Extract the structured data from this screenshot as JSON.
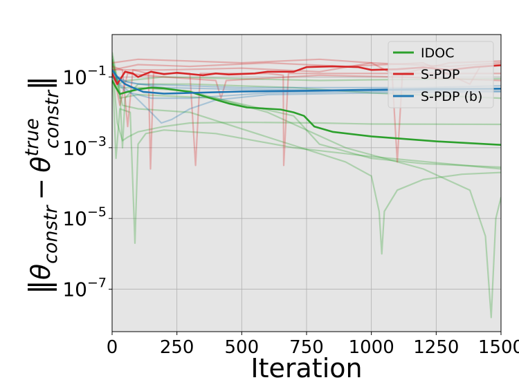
{
  "chart_data": {
    "type": "line",
    "xlabel": "Iteration",
    "ylabel_parts": {
      "theta": "θ",
      "sub": "constr",
      "sup": "true",
      "minus": "−"
    },
    "xlim": [
      0,
      1500
    ],
    "ylim_log10": [
      -8.2,
      0.2
    ],
    "y_scale": "log",
    "grid": true,
    "background": "#e5e5e5",
    "legend_position": "top-right",
    "x_ticks": [
      {
        "value": 0,
        "label": "0"
      },
      {
        "value": 250,
        "label": "250"
      },
      {
        "value": 500,
        "label": "500"
      },
      {
        "value": 750,
        "label": "750"
      },
      {
        "value": 1000,
        "label": "1000"
      },
      {
        "value": 1250,
        "label": "1250"
      },
      {
        "value": 1500,
        "label": "1500"
      }
    ],
    "y_ticks": [
      {
        "log10": -1,
        "base": "10",
        "exp": "−1"
      },
      {
        "log10": -3,
        "base": "10",
        "exp": "−3"
      },
      {
        "log10": -5,
        "base": "10",
        "exp": "−5"
      },
      {
        "log10": -7,
        "base": "10",
        "exp": "−7"
      }
    ],
    "series": [
      {
        "name": "IDOC",
        "color": "#2ca02c",
        "mean_log10": [
          [
            0,
            -1.1
          ],
          [
            15,
            -1.3
          ],
          [
            30,
            -1.48
          ],
          [
            60,
            -1.42
          ],
          [
            100,
            -1.35
          ],
          [
            150,
            -1.3
          ],
          [
            200,
            -1.32
          ],
          [
            300,
            -1.42
          ],
          [
            380,
            -1.6
          ],
          [
            450,
            -1.75
          ],
          [
            520,
            -1.86
          ],
          [
            650,
            -1.92
          ],
          [
            700,
            -2.0
          ],
          [
            740,
            -2.1
          ],
          [
            780,
            -2.4
          ],
          [
            850,
            -2.55
          ],
          [
            1000,
            -2.68
          ],
          [
            1250,
            -2.82
          ],
          [
            1500,
            -2.92
          ]
        ],
        "runs_log10": [
          [
            [
              0,
              -0.3
            ],
            [
              30,
              -1.4
            ],
            [
              40,
              -3.0
            ],
            [
              50,
              -1.6
            ],
            [
              100,
              -1.2
            ],
            [
              300,
              -1.2
            ],
            [
              700,
              -1.3
            ],
            [
              1000,
              -1.45
            ],
            [
              1500,
              -1.6
            ]
          ],
          [
            [
              0,
              -0.5
            ],
            [
              20,
              -2.3
            ],
            [
              40,
              -2.8
            ],
            [
              60,
              -2.7
            ],
            [
              100,
              -2.55
            ],
            [
              200,
              -2.4
            ],
            [
              300,
              -2.3
            ],
            [
              500,
              -2.28
            ],
            [
              800,
              -2.3
            ],
            [
              1000,
              -2.33
            ],
            [
              1500,
              -2.34
            ]
          ],
          [
            [
              0,
              -0.4
            ],
            [
              30,
              -1.6
            ],
            [
              100,
              -1.5
            ],
            [
              400,
              -1.6
            ],
            [
              700,
              -2.1
            ],
            [
              800,
              -2.9
            ],
            [
              1000,
              -3.3
            ],
            [
              1200,
              -3.45
            ],
            [
              1500,
              -3.55
            ]
          ],
          [
            [
              0,
              -0.6
            ],
            [
              15,
              -3.3
            ],
            [
              30,
              -1.9
            ],
            [
              70,
              -2.0
            ],
            [
              88,
              -5.7
            ],
            [
              100,
              -2.9
            ],
            [
              130,
              -2.6
            ],
            [
              200,
              -2.5
            ],
            [
              400,
              -2.6
            ],
            [
              700,
              -3.0
            ],
            [
              1000,
              -3.25
            ],
            [
              1500,
              -3.6
            ]
          ],
          [
            [
              0,
              -0.5
            ],
            [
              40,
              -1.8
            ],
            [
              100,
              -1.9
            ],
            [
              300,
              -2.0
            ],
            [
              600,
              -2.7
            ],
            [
              900,
              -3.4
            ],
            [
              1000,
              -3.8
            ],
            [
              1030,
              -4.8
            ],
            [
              1040,
              -6.0
            ],
            [
              1050,
              -4.8
            ],
            [
              1100,
              -4.2
            ],
            [
              1200,
              -3.9
            ],
            [
              1350,
              -3.75
            ],
            [
              1500,
              -3.7
            ]
          ],
          [
            [
              0,
              -0.5
            ],
            [
              20,
              -1.2
            ],
            [
              60,
              -1.1
            ],
            [
              200,
              -1.0
            ],
            [
              500,
              -1.05
            ],
            [
              800,
              -1.1
            ],
            [
              1000,
              -1.08
            ],
            [
              1500,
              -1.05
            ]
          ],
          [
            [
              0,
              -0.6
            ],
            [
              30,
              -1.3
            ],
            [
              100,
              -1.3
            ],
            [
              300,
              -1.4
            ],
            [
              600,
              -2.0
            ],
            [
              900,
              -3.0
            ],
            [
              1200,
              -3.6
            ],
            [
              1380,
              -4.2
            ],
            [
              1440,
              -5.5
            ],
            [
              1462,
              -7.8
            ],
            [
              1480,
              -5.0
            ],
            [
              1500,
              -4.4
            ]
          ]
        ]
      },
      {
        "name": "S-PDP",
        "color": "#d62728",
        "mean_log10": [
          [
            0,
            -0.9
          ],
          [
            20,
            -1.2
          ],
          [
            50,
            -0.85
          ],
          [
            80,
            -0.9
          ],
          [
            100,
            -1.0
          ],
          [
            150,
            -0.85
          ],
          [
            200,
            -0.92
          ],
          [
            250,
            -0.88
          ],
          [
            350,
            -0.95
          ],
          [
            400,
            -0.9
          ],
          [
            450,
            -0.93
          ],
          [
            550,
            -0.9
          ],
          [
            600,
            -0.85
          ],
          [
            700,
            -0.85
          ],
          [
            750,
            -0.72
          ],
          [
            850,
            -0.7
          ],
          [
            950,
            -0.72
          ],
          [
            1000,
            -0.8
          ],
          [
            1100,
            -0.78
          ],
          [
            1200,
            -0.73
          ],
          [
            1300,
            -0.8
          ],
          [
            1400,
            -0.72
          ],
          [
            1500,
            -0.67
          ]
        ],
        "runs_log10": [
          [
            [
              0,
              -0.7
            ],
            [
              40,
              -0.8
            ],
            [
              60,
              -2.4
            ],
            [
              80,
              -0.8
            ],
            [
              140,
              -0.9
            ],
            [
              148,
              -3.6
            ],
            [
              160,
              -0.9
            ],
            [
              300,
              -0.9
            ],
            [
              322,
              -3.5
            ],
            [
              340,
              -0.9
            ],
            [
              600,
              -0.9
            ],
            [
              660,
              -0.95
            ],
            [
              662,
              -3.5
            ],
            [
              680,
              -0.9
            ],
            [
              1000,
              -0.9
            ],
            [
              1500,
              -0.9
            ]
          ],
          [
            [
              0,
              -0.6
            ],
            [
              100,
              -0.5
            ],
            [
              300,
              -0.55
            ],
            [
              500,
              -0.6
            ],
            [
              800,
              -0.5
            ],
            [
              1000,
              -0.6
            ],
            [
              1080,
              -0.9
            ],
            [
              1100,
              -3.4
            ],
            [
              1120,
              -0.9
            ],
            [
              1300,
              -0.6
            ],
            [
              1500,
              -0.55
            ]
          ],
          [
            [
              0,
              -0.7
            ],
            [
              30,
              -1.8
            ],
            [
              60,
              -0.9
            ],
            [
              200,
              -1.0
            ],
            [
              400,
              -1.1
            ],
            [
              420,
              -1.6
            ],
            [
              440,
              -1.1
            ],
            [
              800,
              -0.95
            ],
            [
              1100,
              -1.0
            ],
            [
              1500,
              -1.1
            ]
          ],
          [
            [
              0,
              -0.8
            ],
            [
              100,
              -0.65
            ],
            [
              300,
              -0.7
            ],
            [
              600,
              -0.6
            ],
            [
              900,
              -0.7
            ],
            [
              1200,
              -0.6
            ],
            [
              1380,
              -1.2
            ],
            [
              1420,
              -0.7
            ],
            [
              1500,
              -0.65
            ]
          ],
          [
            [
              0,
              -0.8
            ],
            [
              200,
              -0.8
            ],
            [
              500,
              -0.75
            ],
            [
              800,
              -0.85
            ],
            [
              1000,
              -0.6
            ],
            [
              1300,
              -0.7
            ],
            [
              1500,
              -0.6
            ]
          ]
        ]
      },
      {
        "name": "S-PDP (b)",
        "color": "#1f77b4",
        "mean_log10": [
          [
            0,
            -0.8
          ],
          [
            20,
            -1.0
          ],
          [
            50,
            -1.2
          ],
          [
            80,
            -1.3
          ],
          [
            120,
            -1.42
          ],
          [
            200,
            -1.47
          ],
          [
            300,
            -1.45
          ],
          [
            500,
            -1.41
          ],
          [
            750,
            -1.39
          ],
          [
            1000,
            -1.36
          ],
          [
            1250,
            -1.34
          ],
          [
            1500,
            -1.33
          ]
        ],
        "runs_log10": [
          [
            [
              0,
              -0.9
            ],
            [
              30,
              -1.2
            ],
            [
              80,
              -1.5
            ],
            [
              150,
              -2.0
            ],
            [
              190,
              -2.3
            ],
            [
              230,
              -2.2
            ],
            [
              300,
              -1.9
            ],
            [
              400,
              -1.65
            ],
            [
              600,
              -1.5
            ],
            [
              1000,
              -1.45
            ],
            [
              1500,
              -1.42
            ]
          ],
          [
            [
              0,
              -1.0
            ],
            [
              40,
              -1.1
            ],
            [
              100,
              -1.2
            ],
            [
              300,
              -1.25
            ],
            [
              500,
              -1.3
            ],
            [
              800,
              -1.3
            ],
            [
              1200,
              -1.3
            ],
            [
              1500,
              -1.25
            ]
          ],
          [
            [
              0,
              -1.0
            ],
            [
              50,
              -1.4
            ],
            [
              150,
              -1.6
            ],
            [
              300,
              -1.6
            ],
            [
              600,
              -1.45
            ],
            [
              1000,
              -1.4
            ],
            [
              1500,
              -1.35
            ]
          ],
          [
            [
              0,
              -0.9
            ],
            [
              60,
              -1.15
            ],
            [
              200,
              -1.3
            ],
            [
              500,
              -1.35
            ],
            [
              1000,
              -1.38
            ],
            [
              1500,
              -1.4
            ]
          ]
        ]
      }
    ]
  }
}
